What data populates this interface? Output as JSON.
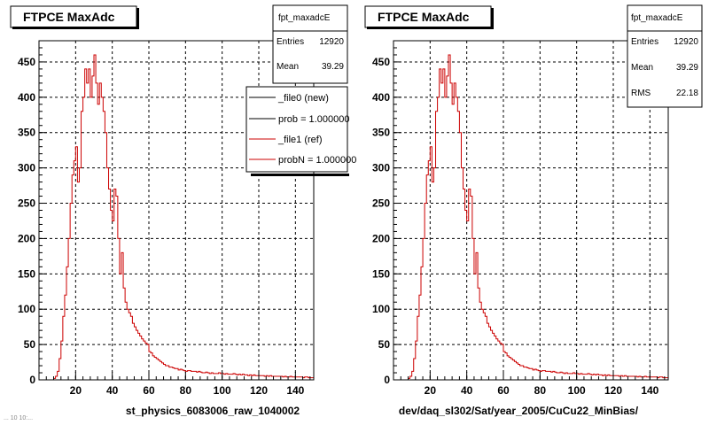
{
  "chart_data": [
    {
      "type": "line",
      "title": "FTPCE MaxAdc",
      "xlabel": "st_physics_6083006_raw_1040002",
      "ylabel": "",
      "xlim": [
        0,
        150
      ],
      "ylim": [
        0,
        480
      ],
      "x_ticks": [
        20,
        40,
        60,
        80,
        100,
        120,
        140
      ],
      "y_ticks": [
        0,
        50,
        100,
        150,
        200,
        250,
        300,
        350,
        400,
        450
      ],
      "grid": true,
      "stats": {
        "name": "fpt_maxadcE",
        "rows": [
          {
            "label": "Entries",
            "value": "12920"
          },
          {
            "label": "Mean",
            "value": "39.29"
          }
        ]
      },
      "legend": {
        "placement": "top-right",
        "entries": [
          {
            "label": "_file0 (new)",
            "color": "#000000"
          },
          {
            "label": "prob = 1.000000",
            "color": "#000000"
          },
          {
            "label": "_file1 (ref)",
            "color": "#cc0000"
          },
          {
            "label": "probN = 1.000000",
            "color": "#cc0000"
          }
        ]
      },
      "series": [
        {
          "color": "#cc0000",
          "values": "shared"
        }
      ]
    },
    {
      "type": "line",
      "title": "FTPCE MaxAdc",
      "xlabel": "dev/daq_sl302/Sat/year_2005/CuCu22_MinBias/",
      "ylabel": "",
      "xlim": [
        0,
        150
      ],
      "ylim": [
        0,
        480
      ],
      "x_ticks": [
        20,
        40,
        60,
        80,
        100,
        120,
        140
      ],
      "y_ticks": [
        0,
        50,
        100,
        150,
        200,
        250,
        300,
        350,
        400,
        450
      ],
      "grid": true,
      "stats": {
        "name": "fpt_maxadcE",
        "rows": [
          {
            "label": "Entries",
            "value": "12920"
          },
          {
            "label": "Mean",
            "value": "39.29"
          },
          {
            "label": "RMS",
            "value": "22.18"
          }
        ]
      },
      "series": [
        {
          "color": "#cc0000",
          "values": "shared"
        }
      ]
    }
  ],
  "histogram": {
    "bin_width": 1,
    "x_start": 0,
    "values": [
      0,
      0,
      0,
      0,
      0,
      0,
      0,
      0,
      2,
      5,
      12,
      30,
      55,
      90,
      120,
      160,
      200,
      250,
      290,
      310,
      330,
      280,
      300,
      380,
      400,
      440,
      420,
      440,
      400,
      430,
      460,
      420,
      390,
      420,
      400,
      380,
      350,
      300,
      270,
      240,
      225,
      270,
      260,
      200,
      150,
      180,
      130,
      110,
      100,
      95,
      90,
      80,
      75,
      70,
      66,
      62,
      58,
      55,
      52,
      50,
      40,
      38,
      34,
      32,
      30,
      28,
      26,
      24,
      22,
      20,
      20,
      18,
      18,
      17,
      16,
      16,
      14,
      15,
      14,
      13,
      12,
      13,
      13,
      12,
      12,
      12,
      11,
      12,
      11,
      10,
      10,
      11,
      10,
      9,
      10,
      9,
      9,
      9,
      10,
      9,
      9,
      8,
      9,
      8,
      8,
      8,
      9,
      8,
      7,
      8,
      7,
      8,
      7,
      7,
      6,
      7,
      6,
      7,
      6,
      6,
      6,
      6,
      6,
      5,
      6,
      5,
      6,
      5,
      5,
      5,
      5,
      5,
      5,
      4,
      5,
      4,
      4,
      5,
      4,
      4,
      4,
      4,
      4,
      4,
      3,
      4,
      4,
      3,
      3,
      3
    ]
  },
  "footer_note": "... 10 10:..."
}
